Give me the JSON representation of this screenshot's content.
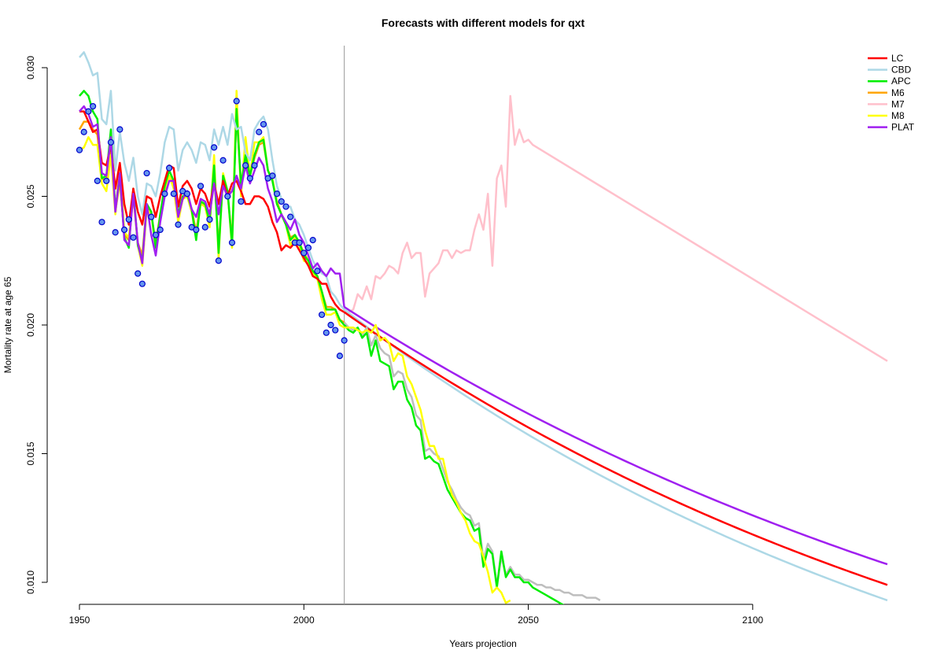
{
  "chart_data": {
    "type": "line",
    "title": "Forecasts with different models for qxt",
    "xlabel": "Years projection",
    "ylabel": "Mortality rate at age 65",
    "xlim": [
      1950,
      2130
    ],
    "ylim": [
      0.0093,
      0.0315
    ],
    "x_ticks": [
      1950,
      2000,
      2050,
      2100
    ],
    "y_ticks": [
      0.01,
      0.015,
      0.02,
      0.025,
      0.03
    ],
    "x_tick_labels": [
      "1950",
      "2000",
      "2050",
      "2100"
    ],
    "y_tick_labels": [
      "0.010",
      "0.015",
      "0.020",
      "0.025",
      "0.030"
    ],
    "forecast_start_year": 2009,
    "legend_position": "top-right",
    "observed": {
      "x": [
        1950,
        1951,
        1952,
        1953,
        1954,
        1955,
        1956,
        1957,
        1958,
        1959,
        1960,
        1961,
        1962,
        1963,
        1964,
        1965,
        1966,
        1967,
        1968,
        1969,
        1970,
        1971,
        1972,
        1973,
        1974,
        1975,
        1976,
        1977,
        1978,
        1979,
        1980,
        1981,
        1982,
        1983,
        1984,
        1985,
        1986,
        1987,
        1988,
        1989,
        1990,
        1991,
        1992,
        1993,
        1994,
        1995,
        1996,
        1997,
        1998,
        1999,
        2000,
        2001,
        2002,
        2003,
        2004,
        2005,
        2006,
        2007,
        2008,
        2009
      ],
      "y": [
        0.0268,
        0.0275,
        0.0283,
        0.0285,
        0.0256,
        0.024,
        0.0256,
        0.0271,
        0.0236,
        0.0276,
        0.0237,
        0.0241,
        0.0234,
        0.022,
        0.0216,
        0.0259,
        0.0242,
        0.0235,
        0.0237,
        0.0251,
        0.0261,
        0.0251,
        0.0239,
        0.0252,
        0.0251,
        0.0238,
        0.0237,
        0.0254,
        0.0238,
        0.0241,
        0.0269,
        0.0225,
        0.0264,
        0.025,
        0.0232,
        0.0287,
        0.0248,
        0.0262,
        0.0257,
        0.0262,
        0.0275,
        0.0278,
        0.0257,
        0.0258,
        0.0251,
        0.0248,
        0.0246,
        0.0242,
        0.0232,
        0.0232,
        0.0228,
        0.023,
        0.0233,
        0.0221,
        0.0204,
        0.0197,
        0.02,
        0.0198,
        0.0188,
        0.0194
      ]
    },
    "series": [
      {
        "name": "LC",
        "color": "#ff0000",
        "fitted": [
          0.0283,
          0.0283,
          0.0279,
          0.0275,
          0.0276,
          0.0263,
          0.0262,
          0.027,
          0.0253,
          0.0263,
          0.0247,
          0.0239,
          0.0253,
          0.0244,
          0.0239,
          0.025,
          0.0249,
          0.0242,
          0.025,
          0.0256,
          0.0262,
          0.0261,
          0.0246,
          0.0254,
          0.0256,
          0.0253,
          0.0247,
          0.0253,
          0.0251,
          0.0246,
          0.0255,
          0.0247,
          0.0256,
          0.025,
          0.0255,
          0.0256,
          0.0252,
          0.0247,
          0.0247,
          0.025,
          0.025,
          0.0249,
          0.0246,
          0.024,
          0.0236,
          0.0229,
          0.0231,
          0.023,
          0.0232,
          0.0229,
          0.0226,
          0.0223,
          0.0219,
          0.0218,
          0.0216,
          0.0216,
          0.0211,
          0.0208,
          0.0206,
          0.0205
        ],
        "forecast_end": 0.0099
      },
      {
        "name": "CBD",
        "color": "#add8e6",
        "fitted": [
          0.0304,
          0.0306,
          0.0302,
          0.0297,
          0.0298,
          0.028,
          0.0278,
          0.0291,
          0.026,
          0.0275,
          0.0263,
          0.0256,
          0.0265,
          0.025,
          0.0243,
          0.0255,
          0.0254,
          0.025,
          0.0259,
          0.0271,
          0.0277,
          0.0276,
          0.026,
          0.0268,
          0.0271,
          0.0268,
          0.0263,
          0.0271,
          0.027,
          0.0264,
          0.0276,
          0.027,
          0.0277,
          0.027,
          0.0282,
          0.0276,
          0.0277,
          0.0267,
          0.0264,
          0.0276,
          0.0279,
          0.0281,
          0.0276,
          0.0264,
          0.0254,
          0.0249,
          0.0246,
          0.0246,
          0.0241,
          0.0239,
          0.0235,
          0.023,
          0.0225,
          0.0222,
          0.022,
          0.0219,
          0.0213,
          0.0211,
          0.0208,
          0.0206
        ],
        "forecast_end": 0.0093
      },
      {
        "name": "APC",
        "color": "#00ee00",
        "fitted": [
          0.0289,
          0.0291,
          0.0289,
          0.0283,
          0.028,
          0.0257,
          0.0258,
          0.0276,
          0.0245,
          0.0258,
          0.0234,
          0.023,
          0.0253,
          0.0231,
          0.0225,
          0.0247,
          0.0244,
          0.023,
          0.0243,
          0.0254,
          0.026,
          0.0256,
          0.0243,
          0.025,
          0.0251,
          0.0245,
          0.0233,
          0.0248,
          0.0247,
          0.024,
          0.0262,
          0.0228,
          0.0258,
          0.0252,
          0.0231,
          0.0284,
          0.0254,
          0.0266,
          0.0258,
          0.0266,
          0.0271,
          0.0272,
          0.026,
          0.0256,
          0.0247,
          0.0243,
          0.0239,
          0.0233,
          0.0235,
          0.0232,
          0.0227,
          0.0225,
          0.0221,
          0.0219,
          0.0213,
          0.0206,
          0.0206,
          0.0206,
          0.0202,
          0.02
        ]
      },
      {
        "name": "M6",
        "color": "#ffa500",
        "fitted": [
          0.0276,
          0.0279,
          0.0279,
          0.0276,
          0.0274,
          0.0257,
          0.0256,
          0.027,
          0.0244,
          0.0256,
          0.0235,
          0.0233,
          0.025,
          0.0232,
          0.0227,
          0.0247,
          0.0243,
          0.0232,
          0.0243,
          0.0252,
          0.0258,
          0.0254,
          0.0242,
          0.0249,
          0.025,
          0.0245,
          0.0236,
          0.0248,
          0.0246,
          0.024,
          0.026,
          0.023,
          0.0257,
          0.0251,
          0.0233,
          0.0283,
          0.0254,
          0.0264,
          0.0258,
          0.0265,
          0.027,
          0.0271,
          0.026,
          0.0256,
          0.0248,
          0.0243,
          0.0239,
          0.0234,
          0.0235,
          0.0232,
          0.0228,
          0.0225,
          0.0221,
          0.0219,
          0.0213,
          0.0207,
          0.0207,
          0.0206,
          0.0202,
          0.0201
        ]
      },
      {
        "name": "M7",
        "color": "#ffc0cb",
        "forecast_end": 0.0186
      },
      {
        "name": "M8",
        "color": "#ffff00",
        "fitted": [
          0.0268,
          0.0269,
          0.0273,
          0.027,
          0.027,
          0.0255,
          0.0252,
          0.0266,
          0.0243,
          0.0262,
          0.0236,
          0.0234,
          0.0252,
          0.0231,
          0.0223,
          0.0245,
          0.0243,
          0.023,
          0.0241,
          0.0253,
          0.0258,
          0.0253,
          0.024,
          0.0249,
          0.025,
          0.0244,
          0.0234,
          0.0247,
          0.0246,
          0.0238,
          0.0266,
          0.0226,
          0.0259,
          0.0252,
          0.023,
          0.0291,
          0.025,
          0.0273,
          0.0258,
          0.0271,
          0.0271,
          0.0273,
          0.026,
          0.0257,
          0.0247,
          0.0243,
          0.0239,
          0.0231,
          0.0234,
          0.0231,
          0.0225,
          0.0224,
          0.022,
          0.0218,
          0.021,
          0.0204,
          0.0204,
          0.0205,
          0.02,
          0.0199
        ]
      },
      {
        "name": "PLAT",
        "color": "#a020f0",
        "fitted": [
          0.0283,
          0.0285,
          0.0282,
          0.0277,
          0.0278,
          0.0259,
          0.0258,
          0.0273,
          0.0244,
          0.0259,
          0.0233,
          0.0231,
          0.0251,
          0.0232,
          0.0224,
          0.0247,
          0.0235,
          0.0227,
          0.024,
          0.025,
          0.0256,
          0.0256,
          0.0242,
          0.0249,
          0.0252,
          0.0245,
          0.0242,
          0.0249,
          0.0248,
          0.0243,
          0.0255,
          0.0243,
          0.0254,
          0.025,
          0.0252,
          0.0258,
          0.0253,
          0.0262,
          0.0255,
          0.026,
          0.0265,
          0.0262,
          0.0253,
          0.0248,
          0.024,
          0.0243,
          0.024,
          0.0237,
          0.0241,
          0.0235,
          0.0232,
          0.0227,
          0.0222,
          0.0224,
          0.0221,
          0.0219,
          0.0222,
          0.022,
          0.022,
          0.0207
        ],
        "forecast_end": 0.0107
      }
    ],
    "m7_forecast": {
      "x": [
        2010,
        2011,
        2012,
        2013,
        2014,
        2015,
        2016,
        2017,
        2018,
        2019,
        2020,
        2021,
        2022,
        2023,
        2024,
        2025,
        2026,
        2027,
        2028,
        2029,
        2030,
        2031,
        2032,
        2033,
        2034,
        2035,
        2036,
        2037,
        2038,
        2039,
        2040,
        2041,
        2042,
        2043,
        2044,
        2045,
        2046,
        2047,
        2048,
        2049,
        2050,
        2051
      ],
      "y": [
        0.0205,
        0.0206,
        0.0212,
        0.021,
        0.0215,
        0.021,
        0.0219,
        0.0218,
        0.022,
        0.0223,
        0.0222,
        0.022,
        0.0228,
        0.0232,
        0.0226,
        0.0228,
        0.0228,
        0.0211,
        0.022,
        0.0222,
        0.0224,
        0.0229,
        0.0229,
        0.0226,
        0.0229,
        0.0228,
        0.0229,
        0.0229,
        0.0237,
        0.0243,
        0.0237,
        0.0251,
        0.0223,
        0.0257,
        0.0262,
        0.0246,
        0.0289,
        0.027,
        0.0276,
        0.0271,
        0.0272,
        0.027
      ]
    },
    "green_forecast": {
      "x": [
        2010,
        2011,
        2012,
        2013,
        2014,
        2015,
        2016,
        2017,
        2018,
        2019,
        2020,
        2021,
        2022,
        2023,
        2024,
        2025,
        2026,
        2027,
        2028,
        2029,
        2030,
        2031,
        2032,
        2033,
        2034,
        2035,
        2036,
        2037,
        2038,
        2039,
        2040,
        2041,
        2042,
        2043,
        2044,
        2045,
        2046,
        2047,
        2048,
        2049,
        2050,
        2051,
        2052,
        2053,
        2054,
        2055,
        2056,
        2057,
        2058,
        2059,
        2060
      ],
      "y": [
        0.0198,
        0.0197,
        0.0199,
        0.0195,
        0.0197,
        0.0188,
        0.0194,
        0.0186,
        0.0185,
        0.0184,
        0.0175,
        0.0178,
        0.0178,
        0.0171,
        0.0168,
        0.0161,
        0.0159,
        0.0148,
        0.0149,
        0.0147,
        0.0146,
        0.0141,
        0.0136,
        0.0133,
        0.013,
        0.0127,
        0.0125,
        0.0124,
        0.012,
        0.0121,
        0.0106,
        0.0113,
        0.0111,
        0.0098,
        0.0112,
        0.0102,
        0.0105,
        0.0102,
        0.0102,
        0.01,
        0.01,
        0.0098,
        0.0097,
        0.0096,
        0.0095,
        0.0094,
        0.0093,
        0.0092,
        0.0091,
        0.009,
        0.0089
      ]
    },
    "gray_forecast": {
      "x": [
        2010,
        2011,
        2012,
        2013,
        2014,
        2015,
        2016,
        2017,
        2018,
        2019,
        2020,
        2021,
        2022,
        2023,
        2024,
        2025,
        2026,
        2027,
        2028,
        2029,
        2030,
        2031,
        2032,
        2033,
        2034,
        2035,
        2036,
        2037,
        2038,
        2039,
        2040,
        2041,
        2042,
        2043,
        2044,
        2045,
        2046,
        2047,
        2048,
        2049,
        2050,
        2051,
        2052,
        2053,
        2054,
        2055,
        2056,
        2057,
        2058,
        2059,
        2060,
        2061,
        2062,
        2063,
        2064,
        2065,
        2066
      ],
      "y": [
        0.0199,
        0.0198,
        0.0199,
        0.0196,
        0.0199,
        0.0192,
        0.0196,
        0.0191,
        0.0189,
        0.0188,
        0.018,
        0.0182,
        0.0181,
        0.0175,
        0.0172,
        0.0165,
        0.0163,
        0.0151,
        0.0152,
        0.015,
        0.0149,
        0.0144,
        0.0139,
        0.0136,
        0.0132,
        0.0129,
        0.0127,
        0.0126,
        0.0122,
        0.0123,
        0.0109,
        0.0115,
        0.0112,
        0.0099,
        0.011,
        0.0103,
        0.0106,
        0.0103,
        0.0103,
        0.0101,
        0.0101,
        0.01,
        0.0099,
        0.0099,
        0.0098,
        0.0098,
        0.0097,
        0.0097,
        0.0096,
        0.0096,
        0.0095,
        0.0095,
        0.0095,
        0.0094,
        0.0094,
        0.0094,
        0.0093
      ]
    },
    "yellow_forecast": {
      "x": [
        2010,
        2011,
        2012,
        2013,
        2014,
        2015,
        2016,
        2017,
        2018,
        2019,
        2020,
        2021,
        2022,
        2023,
        2024,
        2025,
        2026,
        2027,
        2028,
        2029,
        2030,
        2031,
        2032,
        2033,
        2034,
        2035,
        2036,
        2037,
        2038,
        2039,
        2040,
        2041,
        2042,
        2043,
        2044,
        2045,
        2046
      ],
      "y": [
        0.0199,
        0.0199,
        0.0198,
        0.0197,
        0.0198,
        0.0197,
        0.02,
        0.0194,
        0.0195,
        0.0193,
        0.0186,
        0.0189,
        0.0188,
        0.018,
        0.0177,
        0.0172,
        0.0167,
        0.0159,
        0.0153,
        0.0153,
        0.0148,
        0.0148,
        0.014,
        0.0134,
        0.0131,
        0.0127,
        0.0124,
        0.0119,
        0.0116,
        0.0115,
        0.011,
        0.0104,
        0.0096,
        0.0098,
        0.0096,
        0.0092,
        0.0093
      ]
    }
  }
}
